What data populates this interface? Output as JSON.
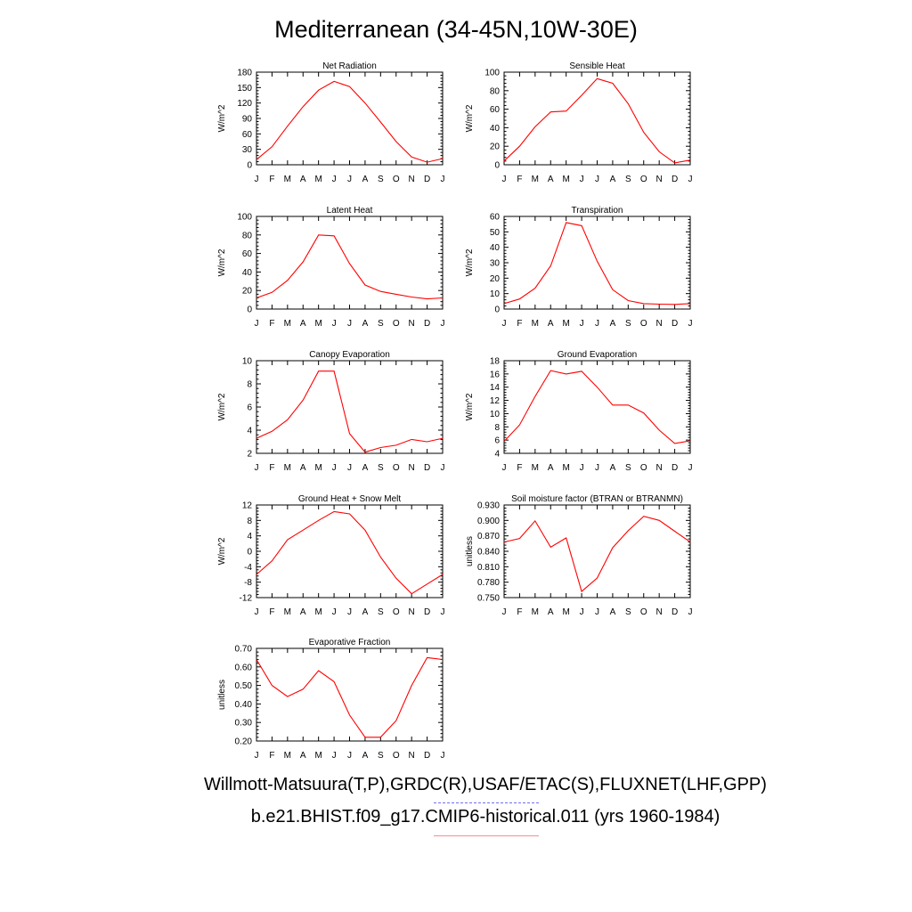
{
  "page": {
    "title": "Mediterranean (34-45N,10W-30E)",
    "credit_line_1": "Willmott-Matsuura(T,P),GRDC(R),USAF/ETAC(S),FLUXNET(LHF,GPP)",
    "credit_line_2": "b.e21.BHIST.f09_g17.CMIP6-historical.011 (yrs 1960-1984)",
    "obs_line_color": "#6f6ff0",
    "model_line_color": "#ff8a8a"
  },
  "chart_data": [
    {
      "id": "net-radiation",
      "type": "line",
      "title": "Net Radiation",
      "xlabel": "",
      "ylabel": "W/m^2",
      "categories": [
        "J",
        "F",
        "M",
        "A",
        "M",
        "J",
        "J",
        "A",
        "S",
        "O",
        "N",
        "D",
        "J"
      ],
      "ylim": [
        0,
        180
      ],
      "yticks": [
        0,
        30,
        60,
        90,
        120,
        150,
        180
      ],
      "ytick_labels": [
        "0",
        "30",
        "60",
        "90",
        "120",
        "150",
        "180"
      ],
      "series": [
        {
          "color": "#ff0000",
          "values": [
            10,
            35,
            75,
            113,
            145,
            162,
            152,
            120,
            83,
            45,
            15,
            5,
            12
          ]
        }
      ]
    },
    {
      "id": "sensible-heat",
      "type": "line",
      "title": "Sensible Heat",
      "xlabel": "",
      "ylabel": "W/m^2",
      "categories": [
        "J",
        "F",
        "M",
        "A",
        "M",
        "J",
        "J",
        "A",
        "S",
        "O",
        "N",
        "D",
        "J"
      ],
      "ylim": [
        0,
        100
      ],
      "yticks": [
        0,
        20,
        40,
        60,
        80,
        100
      ],
      "ytick_labels": [
        "0",
        "20",
        "40",
        "60",
        "80",
        "100"
      ],
      "series": [
        {
          "color": "#ff0000",
          "values": [
            4,
            20,
            41,
            57,
            58,
            75,
            93,
            88,
            66,
            35,
            14,
            2,
            5
          ]
        }
      ]
    },
    {
      "id": "latent-heat",
      "type": "line",
      "title": "Latent Heat",
      "xlabel": "",
      "ylabel": "W/m^2",
      "categories": [
        "J",
        "F",
        "M",
        "A",
        "M",
        "J",
        "J",
        "A",
        "S",
        "O",
        "N",
        "D",
        "J"
      ],
      "ylim": [
        0,
        100
      ],
      "yticks": [
        0,
        20,
        40,
        60,
        80,
        100
      ],
      "ytick_labels": [
        "0",
        "20",
        "40",
        "60",
        "80",
        "100"
      ],
      "series": [
        {
          "color": "#ff0000",
          "values": [
            12,
            18,
            31,
            51,
            80,
            79,
            49,
            26,
            19,
            16,
            13,
            11,
            12
          ]
        }
      ]
    },
    {
      "id": "transpiration",
      "type": "line",
      "title": "Transpiration",
      "xlabel": "",
      "ylabel": "W/m^2",
      "categories": [
        "J",
        "F",
        "M",
        "A",
        "M",
        "J",
        "J",
        "A",
        "S",
        "O",
        "N",
        "D",
        "J"
      ],
      "ylim": [
        0,
        60
      ],
      "yticks": [
        0,
        10,
        20,
        30,
        40,
        50,
        60
      ],
      "ytick_labels": [
        "0",
        "10",
        "20",
        "30",
        "40",
        "50",
        "60"
      ],
      "series": [
        {
          "color": "#ff0000",
          "values": [
            3.5,
            6.5,
            13.5,
            28,
            56,
            54,
            31,
            12.5,
            5.5,
            3.5,
            3.2,
            3.0,
            3.5
          ]
        }
      ]
    },
    {
      "id": "canopy-evaporation",
      "type": "line",
      "title": "Canopy Evaporation",
      "xlabel": "",
      "ylabel": "W/m^2",
      "categories": [
        "J",
        "F",
        "M",
        "A",
        "M",
        "J",
        "J",
        "A",
        "S",
        "O",
        "N",
        "D",
        "J"
      ],
      "ylim": [
        2,
        10
      ],
      "yticks": [
        2,
        4,
        6,
        8,
        10
      ],
      "ytick_labels": [
        "2",
        "4",
        "6",
        "8",
        "10"
      ],
      "series": [
        {
          "color": "#ff0000",
          "values": [
            3.3,
            3.9,
            4.9,
            6.6,
            9.1,
            9.1,
            3.7,
            2.1,
            2.5,
            2.7,
            3.2,
            3.0,
            3.3
          ]
        }
      ]
    },
    {
      "id": "ground-evaporation",
      "type": "line",
      "title": "Ground Evaporation",
      "xlabel": "",
      "ylabel": "W/m^2",
      "categories": [
        "J",
        "F",
        "M",
        "A",
        "M",
        "J",
        "J",
        "A",
        "S",
        "O",
        "N",
        "D",
        "J"
      ],
      "ylim": [
        4,
        18
      ],
      "yticks": [
        4,
        6,
        8,
        10,
        12,
        14,
        16,
        18
      ],
      "ytick_labels": [
        "4",
        "6",
        "8",
        "10",
        "12",
        "14",
        "16",
        "18"
      ],
      "series": [
        {
          "color": "#ff0000",
          "values": [
            5.8,
            8.3,
            12.6,
            16.5,
            16.0,
            16.4,
            14.0,
            11.3,
            11.3,
            10.1,
            7.5,
            5.5,
            5.9
          ]
        }
      ]
    },
    {
      "id": "ground-heat-snow-melt",
      "type": "line",
      "title": "Ground Heat + Snow Melt",
      "xlabel": "",
      "ylabel": "W/m^2",
      "categories": [
        "J",
        "F",
        "M",
        "A",
        "M",
        "J",
        "J",
        "A",
        "S",
        "O",
        "N",
        "D",
        "J"
      ],
      "ylim": [
        -12,
        12
      ],
      "yticks": [
        -12,
        -8,
        -4,
        0,
        4,
        8,
        12
      ],
      "ytick_labels": [
        "-12",
        "-8",
        "-4",
        "0",
        "4",
        "8",
        "12"
      ],
      "series": [
        {
          "color": "#ff0000",
          "values": [
            -6,
            -2.5,
            3,
            5.5,
            8,
            10.3,
            9.7,
            5.5,
            -1.5,
            -7,
            -11,
            -8.5,
            -6
          ]
        }
      ]
    },
    {
      "id": "soil-moisture-factor",
      "type": "line",
      "title": "Soil moisture factor (BTRAN or BTRANMN)",
      "xlabel": "",
      "ylabel": "unitless",
      "categories": [
        "J",
        "F",
        "M",
        "A",
        "M",
        "J",
        "J",
        "A",
        "S",
        "O",
        "N",
        "D",
        "J"
      ],
      "ylim": [
        0.75,
        0.93
      ],
      "yticks": [
        0.75,
        0.78,
        0.81,
        0.84,
        0.87,
        0.9,
        0.93
      ],
      "ytick_labels": [
        "0.750",
        "0.780",
        "0.810",
        "0.840",
        "0.870",
        "0.900",
        "0.930"
      ],
      "series": [
        {
          "color": "#ff0000",
          "values": [
            0.858,
            0.865,
            0.899,
            0.848,
            0.866,
            0.762,
            0.788,
            0.847,
            0.88,
            0.908,
            0.9,
            0.879,
            0.858
          ]
        }
      ]
    },
    {
      "id": "evaporative-fraction",
      "type": "line",
      "title": "Evaporative Fraction",
      "xlabel": "",
      "ylabel": "unitless",
      "categories": [
        "J",
        "F",
        "M",
        "A",
        "M",
        "J",
        "J",
        "A",
        "S",
        "O",
        "N",
        "D",
        "J"
      ],
      "ylim": [
        0.2,
        0.7
      ],
      "yticks": [
        0.2,
        0.3,
        0.4,
        0.5,
        0.6,
        0.7
      ],
      "ytick_labels": [
        "0.20",
        "0.30",
        "0.40",
        "0.50",
        "0.60",
        "0.70"
      ],
      "series": [
        {
          "color": "#ff0000",
          "values": [
            0.64,
            0.5,
            0.44,
            0.48,
            0.58,
            0.52,
            0.34,
            0.22,
            0.22,
            0.31,
            0.5,
            0.65,
            0.64
          ]
        }
      ]
    }
  ]
}
